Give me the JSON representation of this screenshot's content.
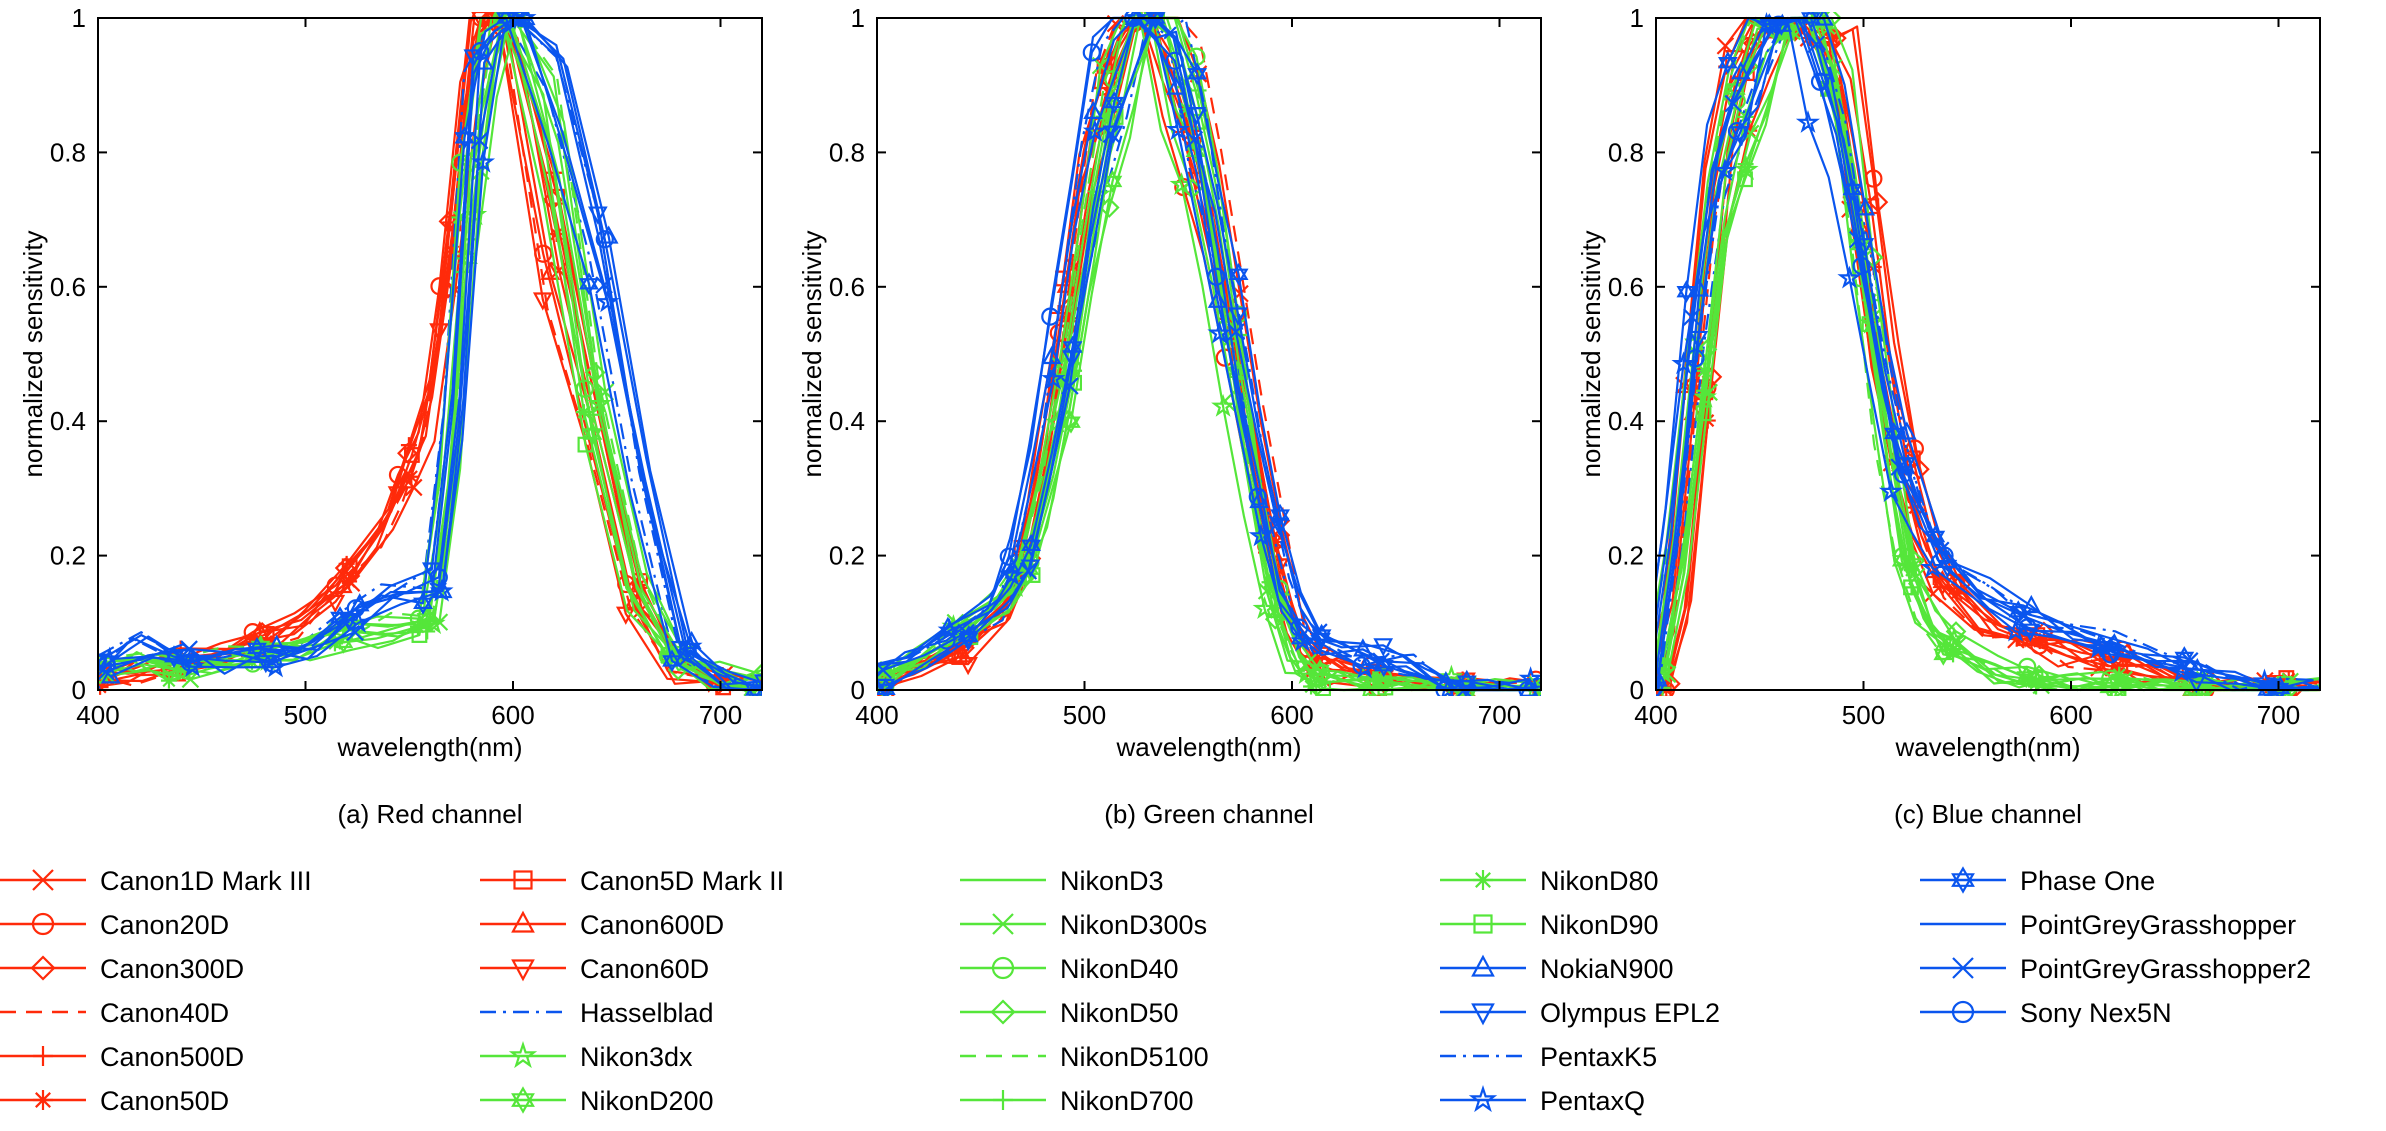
{
  "chart_data": [
    {
      "type": "line",
      "caption": "(a) Red channel",
      "xlabel": "wavelength(nm)",
      "ylabel": "normalized sensitivity",
      "xlim": [
        400,
        720
      ],
      "ylim": [
        0,
        1
      ],
      "xticks": [
        "400",
        "500",
        "600",
        "700"
      ],
      "yticks": [
        "0",
        "0.2",
        "0.4",
        "0.6",
        "0.8",
        "1"
      ],
      "grid": false,
      "families": {
        "canon": {
          "x": [
            400,
            420,
            440,
            460,
            480,
            500,
            520,
            540,
            550,
            560,
            570,
            580,
            590,
            600,
            620,
            640,
            660,
            680,
            700,
            720
          ],
          "y": [
            0.02,
            0.03,
            0.04,
            0.05,
            0.07,
            0.1,
            0.16,
            0.24,
            0.31,
            0.4,
            0.62,
            0.92,
            1.0,
            0.97,
            0.66,
            0.4,
            0.14,
            0.03,
            0.01,
            0.0
          ]
        },
        "nikon": {
          "x": [
            400,
            420,
            440,
            460,
            480,
            500,
            520,
            540,
            560,
            570,
            580,
            590,
            600,
            620,
            640,
            660,
            680,
            700,
            720
          ],
          "y": [
            0.03,
            0.04,
            0.03,
            0.04,
            0.05,
            0.06,
            0.08,
            0.09,
            0.1,
            0.3,
            0.7,
            0.95,
            1.0,
            0.8,
            0.42,
            0.15,
            0.04,
            0.02,
            0.01
          ]
        },
        "blue": {
          "x": [
            400,
            420,
            440,
            460,
            480,
            500,
            520,
            540,
            560,
            570,
            580,
            590,
            600,
            620,
            640,
            660,
            680,
            700,
            720
          ],
          "y": [
            0.03,
            0.06,
            0.05,
            0.04,
            0.05,
            0.06,
            0.1,
            0.14,
            0.15,
            0.4,
            0.85,
            0.98,
            1.0,
            0.85,
            0.62,
            0.3,
            0.06,
            0.01,
            0.0
          ]
        }
      }
    },
    {
      "type": "line",
      "caption": "(b) Green channel",
      "xlabel": "wavelength(nm)",
      "ylabel": "normalized sensitivity",
      "xlim": [
        400,
        720
      ],
      "ylim": [
        0,
        1
      ],
      "xticks": [
        "400",
        "500",
        "600",
        "700"
      ],
      "yticks": [
        "0",
        "0.2",
        "0.4",
        "0.6",
        "0.8",
        "1"
      ],
      "grid": false,
      "families": {
        "canon": {
          "x": [
            400,
            420,
            440,
            460,
            470,
            480,
            490,
            500,
            510,
            520,
            530,
            540,
            550,
            560,
            570,
            580,
            590,
            600,
            610,
            620,
            640,
            660,
            680,
            700,
            720
          ],
          "y": [
            0.01,
            0.03,
            0.06,
            0.12,
            0.2,
            0.38,
            0.6,
            0.82,
            0.93,
            0.98,
            1.0,
            0.95,
            0.86,
            0.72,
            0.56,
            0.38,
            0.22,
            0.1,
            0.05,
            0.03,
            0.02,
            0.01,
            0.0,
            0.0,
            0.0
          ]
        },
        "nikon": {
          "x": [
            400,
            420,
            440,
            460,
            470,
            480,
            490,
            500,
            510,
            520,
            530,
            540,
            550,
            560,
            570,
            580,
            590,
            600,
            610,
            620,
            640,
            660,
            680,
            700,
            720
          ],
          "y": [
            0.02,
            0.05,
            0.09,
            0.14,
            0.19,
            0.3,
            0.45,
            0.66,
            0.85,
            0.95,
            1.0,
            0.96,
            0.86,
            0.7,
            0.5,
            0.3,
            0.14,
            0.05,
            0.02,
            0.01,
            0.0,
            0.0,
            0.0,
            0.0,
            0.0
          ]
        },
        "blue": {
          "x": [
            400,
            420,
            440,
            460,
            470,
            480,
            490,
            500,
            510,
            520,
            530,
            540,
            550,
            560,
            570,
            580,
            590,
            600,
            610,
            620,
            640,
            660,
            680,
            700,
            720
          ],
          "y": [
            0.02,
            0.05,
            0.08,
            0.13,
            0.2,
            0.33,
            0.5,
            0.7,
            0.86,
            0.96,
            1.0,
            0.97,
            0.88,
            0.74,
            0.58,
            0.42,
            0.26,
            0.14,
            0.08,
            0.06,
            0.05,
            0.03,
            0.01,
            0.0,
            0.0
          ]
        }
      }
    },
    {
      "type": "line",
      "caption": "(c) Blue channel",
      "xlabel": "wavelength(nm)",
      "ylabel": "normalized sensitivity",
      "xlim": [
        400,
        720
      ],
      "ylim": [
        0,
        1
      ],
      "xticks": [
        "400",
        "500",
        "600",
        "700"
      ],
      "yticks": [
        "0",
        "0.2",
        "0.4",
        "0.6",
        "0.8",
        "1"
      ],
      "grid": false,
      "families": {
        "canon": {
          "x": [
            400,
            410,
            420,
            430,
            440,
            450,
            460,
            470,
            480,
            490,
            500,
            510,
            520,
            530,
            540,
            560,
            580,
            600,
            620,
            640,
            660,
            680,
            700,
            720
          ],
          "y": [
            0.0,
            0.1,
            0.4,
            0.7,
            0.85,
            0.93,
            0.98,
            1.0,
            0.97,
            0.85,
            0.65,
            0.45,
            0.3,
            0.2,
            0.14,
            0.09,
            0.07,
            0.05,
            0.04,
            0.02,
            0.01,
            0.0,
            0.0,
            0.0
          ]
        },
        "nikon": {
          "x": [
            400,
            410,
            420,
            430,
            440,
            450,
            460,
            470,
            480,
            490,
            500,
            510,
            520,
            530,
            540,
            560,
            580,
            600,
            620,
            640,
            660,
            680,
            700,
            720
          ],
          "y": [
            0.02,
            0.2,
            0.45,
            0.7,
            0.82,
            0.92,
            0.98,
            1.0,
            0.95,
            0.8,
            0.58,
            0.35,
            0.18,
            0.1,
            0.06,
            0.03,
            0.02,
            0.01,
            0.01,
            0.0,
            0.0,
            0.0,
            0.0,
            0.0
          ]
        },
        "blue": {
          "x": [
            400,
            410,
            420,
            430,
            440,
            450,
            460,
            470,
            480,
            490,
            500,
            510,
            520,
            530,
            540,
            560,
            580,
            600,
            620,
            640,
            660,
            680,
            700,
            720
          ],
          "y": [
            0.02,
            0.25,
            0.55,
            0.78,
            0.88,
            0.95,
            0.99,
            1.0,
            0.96,
            0.85,
            0.68,
            0.5,
            0.35,
            0.26,
            0.2,
            0.14,
            0.11,
            0.09,
            0.07,
            0.05,
            0.03,
            0.01,
            0.0,
            0.0
          ]
        }
      }
    }
  ],
  "colors": {
    "red": "#ff2a0a",
    "green": "#55e63a",
    "blue": "#0a55ee"
  },
  "legend": [
    {
      "label": "Canon1D Mark III",
      "color": "red",
      "marker": "x",
      "style": "solid",
      "family": "canon"
    },
    {
      "label": "Canon20D",
      "color": "red",
      "marker": "circle",
      "style": "solid",
      "family": "canon"
    },
    {
      "label": "Canon300D",
      "color": "red",
      "marker": "diamond",
      "style": "solid",
      "family": "canon"
    },
    {
      "label": "Canon40D",
      "color": "red",
      "marker": "none",
      "style": "dashed",
      "family": "canon"
    },
    {
      "label": "Canon500D",
      "color": "red",
      "marker": "plus",
      "style": "solid",
      "family": "canon"
    },
    {
      "label": "Canon50D",
      "color": "red",
      "marker": "asterisk",
      "style": "solid",
      "family": "canon"
    },
    {
      "label": "Canon5D Mark II",
      "color": "red",
      "marker": "square",
      "style": "solid",
      "family": "canon"
    },
    {
      "label": "Canon600D",
      "color": "red",
      "marker": "triangle",
      "style": "solid",
      "family": "canon"
    },
    {
      "label": "Canon60D",
      "color": "red",
      "marker": "triangle-down",
      "style": "solid",
      "family": "canon"
    },
    {
      "label": "Hasselblad",
      "color": "blue",
      "marker": "none",
      "style": "dashdot",
      "family": "blue"
    },
    {
      "label": "Nikon3dx",
      "color": "green",
      "marker": "star",
      "style": "solid",
      "family": "nikon"
    },
    {
      "label": "NikonD200",
      "color": "green",
      "marker": "hexagram",
      "style": "solid",
      "family": "nikon"
    },
    {
      "label": "NikonD3",
      "color": "green",
      "marker": "none",
      "style": "solid",
      "family": "nikon"
    },
    {
      "label": "NikonD300s",
      "color": "green",
      "marker": "x",
      "style": "solid",
      "family": "nikon"
    },
    {
      "label": "NikonD40",
      "color": "green",
      "marker": "circle",
      "style": "solid",
      "family": "nikon"
    },
    {
      "label": "NikonD50",
      "color": "green",
      "marker": "diamond",
      "style": "solid",
      "family": "nikon"
    },
    {
      "label": "NikonD5100",
      "color": "green",
      "marker": "none",
      "style": "dashed",
      "family": "nikon"
    },
    {
      "label": "NikonD700",
      "color": "green",
      "marker": "plus",
      "style": "solid",
      "family": "nikon"
    },
    {
      "label": "NikonD80",
      "color": "green",
      "marker": "asterisk",
      "style": "solid",
      "family": "nikon"
    },
    {
      "label": "NikonD90",
      "color": "green",
      "marker": "square",
      "style": "solid",
      "family": "nikon"
    },
    {
      "label": "NokiaN900",
      "color": "blue",
      "marker": "triangle",
      "style": "solid",
      "family": "blue"
    },
    {
      "label": "Olympus EPL2",
      "color": "blue",
      "marker": "triangle-down",
      "style": "solid",
      "family": "blue"
    },
    {
      "label": "PentaxK5",
      "color": "blue",
      "marker": "none",
      "style": "dashdot",
      "family": "blue"
    },
    {
      "label": "PentaxQ",
      "color": "blue",
      "marker": "star",
      "style": "solid",
      "family": "blue"
    },
    {
      "label": "Phase One",
      "color": "blue",
      "marker": "hexagram",
      "style": "solid",
      "family": "blue"
    },
    {
      "label": "PointGreyGrasshopper",
      "color": "blue",
      "marker": "none",
      "style": "solid",
      "family": "blue"
    },
    {
      "label": "PointGreyGrasshopper2",
      "color": "blue",
      "marker": "x",
      "style": "solid",
      "family": "blue"
    },
    {
      "label": "Sony Nex5N",
      "color": "blue",
      "marker": "circle",
      "style": "solid",
      "family": "blue"
    }
  ]
}
